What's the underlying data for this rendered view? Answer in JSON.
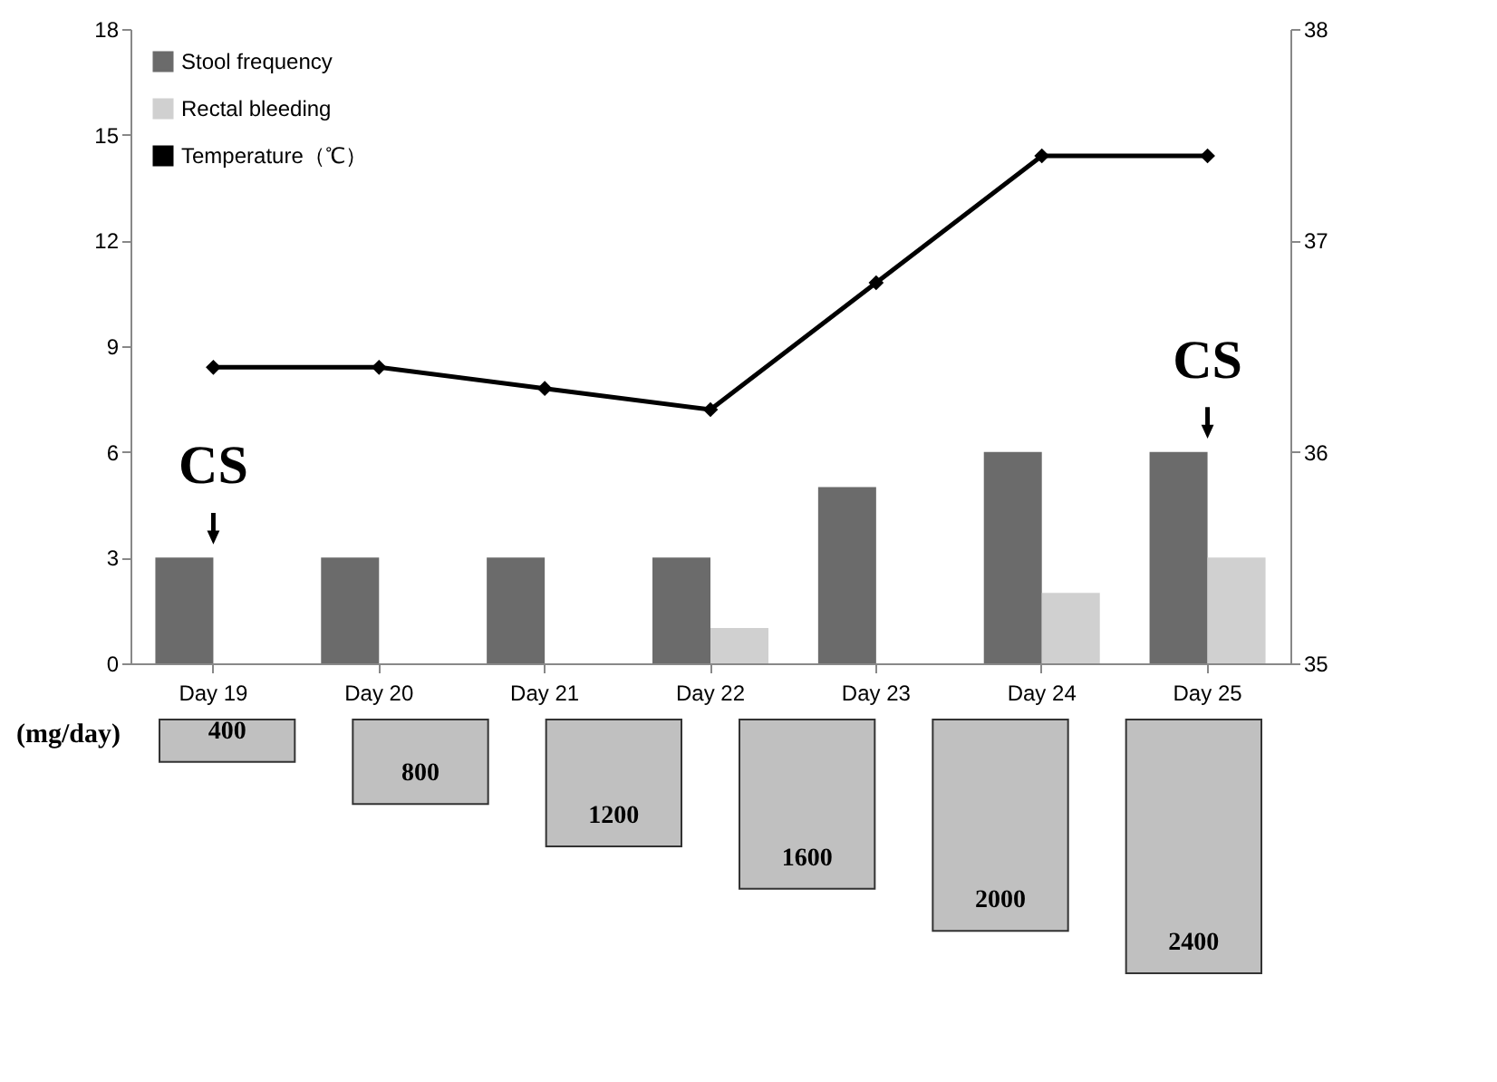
{
  "chart_data": [
    {
      "type": "bar",
      "categories": [
        "Day 19",
        "Day 20",
        "Day 21",
        "Day 22",
        "Day 23",
        "Day 24",
        "Day 25"
      ],
      "series": [
        {
          "name": "Stool frequency",
          "color": "#6b6b6b",
          "values": [
            3,
            3,
            3,
            3,
            5,
            6,
            6
          ]
        },
        {
          "name": "Rectal bleeding",
          "color": "#d0d0d0",
          "values": [
            0,
            0,
            0,
            1,
            0,
            2,
            3
          ]
        },
        {
          "name": "Temperature（℃）",
          "type": "line",
          "axis": "y2",
          "color": "#000000",
          "marker": "diamond",
          "values": [
            36.4,
            36.4,
            36.3,
            36.2,
            36.8,
            37.4,
            37.4
          ]
        }
      ],
      "ylim": [
        0,
        18
      ],
      "yticks": [
        0,
        3,
        6,
        9,
        12,
        15,
        18
      ],
      "y2lim": [
        35,
        38
      ],
      "y2ticks": [
        35,
        36,
        37,
        38
      ],
      "annotations": [
        {
          "text": "CS",
          "x": "Day 19",
          "y": 3
        },
        {
          "text": "CS",
          "x": "Day 25",
          "y": 6
        }
      ],
      "legend": "top left",
      "grid": false
    },
    {
      "type": "other",
      "categories": [
        null,
        null,
        null,
        null,
        null,
        null
      ],
      "values": [
        400,
        800,
        1200,
        1600,
        2000,
        2400
      ],
      "color": "#c0c0c0",
      "ylabel": "(mg/day)",
      "data_labels": true
    }
  ]
}
